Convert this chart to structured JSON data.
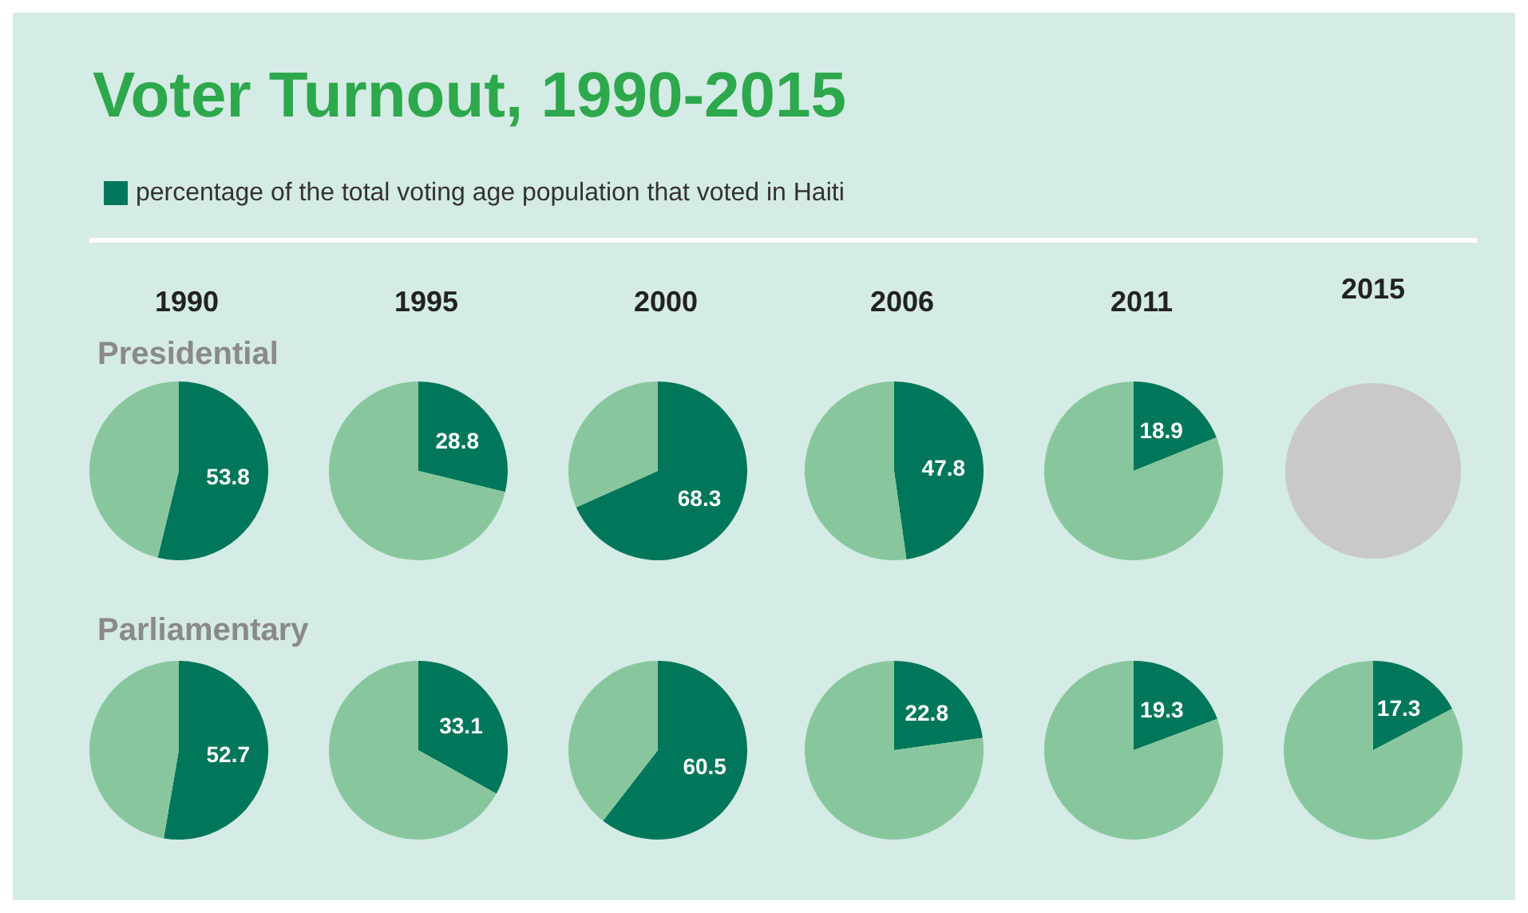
{
  "chart_data": [
    {
      "type": "other",
      "title": "Voter Turnout, 1990-2015"
    },
    {
      "type": "pie",
      "title": "1990",
      "subtitle": "Presidential",
      "categories": [
        "percentage of the total voting age population that voted in Haiti",
        null
      ],
      "values": [
        53.8,
        46.2
      ],
      "colors": [
        "#00775a",
        "#88c79e"
      ],
      "value_labels": [
        "53.8",
        null
      ],
      "legend": "top right"
    },
    {
      "type": "pie",
      "title": "1995",
      "categories": [
        null,
        null
      ],
      "values": [
        28.8,
        71.2
      ],
      "colors": [
        "#00775a",
        "#88c79e"
      ],
      "value_labels": [
        "28.8",
        null
      ]
    },
    {
      "type": "pie",
      "title": "2000",
      "categories": [
        null,
        null
      ],
      "values": [
        68.3,
        31.7
      ],
      "colors": [
        "#00775a",
        "#88c79e"
      ],
      "value_labels": [
        "68.3",
        null
      ]
    },
    {
      "type": "pie",
      "title": "2006",
      "categories": [
        null,
        null
      ],
      "values": [
        47.8,
        52.2
      ],
      "colors": [
        "#00775a",
        "#88c79e"
      ],
      "value_labels": [
        "47.8",
        null
      ]
    },
    {
      "type": "pie",
      "title": "2011",
      "categories": [
        null,
        null
      ],
      "values": [
        18.9,
        81.1
      ],
      "colors": [
        "#00775a",
        "#88c79e"
      ],
      "value_labels": [
        "18.9",
        null
      ]
    },
    {
      "type": "other",
      "title": "2015"
    },
    {
      "type": "pie",
      "title": "Parliamentary",
      "categories": [
        null,
        null
      ],
      "values": [
        52.7,
        47.3
      ],
      "colors": [
        "#00775a",
        "#88c79e"
      ],
      "value_labels": [
        "52.7",
        null
      ]
    },
    {
      "type": "pie",
      "categories": [
        null,
        null
      ],
      "values": [
        33.1,
        66.9
      ],
      "colors": [
        "#00775a",
        "#88c79e"
      ],
      "value_labels": [
        "33.1",
        null
      ]
    },
    {
      "type": "pie",
      "categories": [
        null,
        null
      ],
      "values": [
        60.5,
        39.5
      ],
      "colors": [
        "#00775a",
        "#88c79e"
      ],
      "value_labels": [
        "60.5",
        null
      ]
    },
    {
      "type": "pie",
      "categories": [
        null,
        null
      ],
      "values": [
        22.8,
        77.2
      ],
      "colors": [
        "#00775a",
        "#88c79e"
      ],
      "value_labels": [
        "22.8",
        null
      ]
    },
    {
      "type": "pie",
      "categories": [
        null,
        null
      ],
      "values": [
        19.3,
        80.7
      ],
      "colors": [
        "#00775a",
        "#88c79e"
      ],
      "value_labels": [
        "19.3",
        null
      ]
    },
    {
      "type": "pie",
      "categories": [
        null,
        null
      ],
      "values": [
        17.3,
        82.7
      ],
      "colors": [
        "#00775a",
        "#88c79e"
      ],
      "value_labels": [
        "17.3",
        null
      ]
    }
  ]
}
